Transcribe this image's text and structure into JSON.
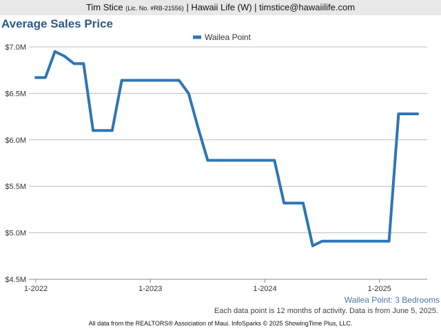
{
  "header": {
    "agent_name": "Tim Stice",
    "license": "(Lic. No. #RB-21556)",
    "rest": "| Hawaii Life (W) | timstice@hawaiilife.com"
  },
  "chart_data": {
    "type": "line",
    "title": "Average Sales Price",
    "legend_placement": "top-center",
    "grid": true,
    "ylim": [
      4.5,
      7.0
    ],
    "y_ticks": [
      {
        "value": 7.0,
        "label": "$7.0M"
      },
      {
        "value": 6.5,
        "label": "$6.5M"
      },
      {
        "value": 6.0,
        "label": "$6.0M"
      },
      {
        "value": 5.5,
        "label": "$5.5M"
      },
      {
        "value": 5.0,
        "label": "$5.0M"
      },
      {
        "value": 4.5,
        "label": "$4.5M"
      }
    ],
    "x_range": [
      "2022-01",
      "2025-06"
    ],
    "x_ticks": [
      {
        "value": "2022-01",
        "label": "1-2022"
      },
      {
        "value": "2023-01",
        "label": "1-2023"
      },
      {
        "value": "2024-01",
        "label": "1-2024"
      },
      {
        "value": "2025-01",
        "label": "1-2025"
      }
    ],
    "series": [
      {
        "name": "Wailea Point",
        "color": "#2e75b6",
        "x": [
          "2022-01",
          "2022-02",
          "2022-03",
          "2022-04",
          "2022-05",
          "2022-06",
          "2022-07",
          "2022-08",
          "2022-09",
          "2022-10",
          "2022-11",
          "2022-12",
          "2023-01",
          "2023-02",
          "2023-03",
          "2023-04",
          "2023-05",
          "2023-06",
          "2023-07",
          "2023-08",
          "2023-09",
          "2023-10",
          "2023-11",
          "2023-12",
          "2024-01",
          "2024-02",
          "2024-03",
          "2024-04",
          "2024-05",
          "2024-06",
          "2024-07",
          "2024-08",
          "2024-09",
          "2024-10",
          "2024-11",
          "2024-12",
          "2025-01",
          "2025-02",
          "2025-03",
          "2025-04",
          "2025-05"
        ],
        "values": [
          6.67,
          6.67,
          6.95,
          6.9,
          6.82,
          6.82,
          6.1,
          6.1,
          6.1,
          6.64,
          6.64,
          6.64,
          6.64,
          6.64,
          6.64,
          6.64,
          6.5,
          6.13,
          5.78,
          5.78,
          5.78,
          5.78,
          5.78,
          5.78,
          5.78,
          5.78,
          5.32,
          5.32,
          5.32,
          4.86,
          4.91,
          4.91,
          4.91,
          4.91,
          4.91,
          4.91,
          4.91,
          4.91,
          6.28,
          6.28,
          6.28
        ]
      }
    ]
  },
  "subtitle": "Wailea Point: 3 Bedrooms",
  "note": "Each data point is 12 months of activity. Data is from June 5, 2025.",
  "footer": "All data from the REALTORS® Association of Maui. InfoSparks © 2025 ShowingTime Plus, LLC."
}
